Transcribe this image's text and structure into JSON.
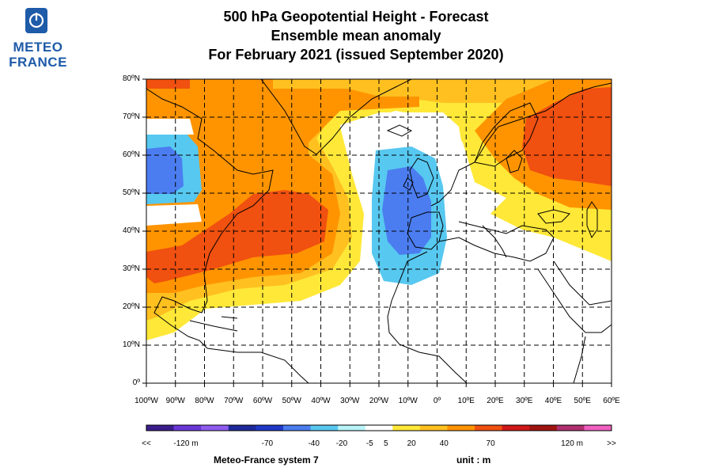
{
  "logo": {
    "line1": "METEO",
    "line2": "FRANCE",
    "icon": "meteo-france-badge-icon"
  },
  "title": {
    "line1": "500 hPa Geopotential Height   -   Forecast",
    "line2": "Ensemble mean anomaly",
    "line3": "For February 2021   (issued September 2020)"
  },
  "map": {
    "lat_labels": [
      "80ºN",
      "70ºN",
      "60ºN",
      "50ºN",
      "40ºN",
      "30ºN",
      "20ºN",
      "10ºN",
      "0º"
    ],
    "lat_values": [
      80,
      70,
      60,
      50,
      40,
      30,
      20,
      10,
      0
    ],
    "lon_labels": [
      "100ºW",
      "90ºW",
      "80ºW",
      "70ºW",
      "60ºW",
      "50ºW",
      "40ºW",
      "30ºW",
      "20ºW",
      "10ºW",
      "0º",
      "10ºE",
      "20ºE",
      "30ºE",
      "40ºE",
      "50ºE",
      "60ºE"
    ],
    "lon_values": [
      -100,
      -90,
      -80,
      -70,
      -60,
      -50,
      -40,
      -30,
      -20,
      -10,
      0,
      10,
      20,
      30,
      40,
      50,
      60
    ],
    "anomaly_regions": [
      {
        "level": "orange-20-40",
        "center": [
          -48,
          42
        ],
        "note": "positive anomaly western Atlantic"
      },
      {
        "level": "red-40-70",
        "center": [
          -65,
          36
        ],
        "note": "strong positive anomaly"
      },
      {
        "level": "red-40-70",
        "center": [
          45,
          62
        ],
        "note": "strong positive anomaly Scandinavia/Russia"
      },
      {
        "level": "blue-minus-40-minus-20",
        "center": [
          -12,
          44
        ],
        "note": "negative anomaly west of Iberia"
      },
      {
        "level": "blue-minus-40-minus-20",
        "center": [
          -97,
          55
        ],
        "note": "negative anomaly Canada"
      }
    ]
  },
  "colorbar": {
    "colors": [
      "#3b1e8c",
      "#6a38d8",
      "#8f5cf0",
      "#1e2a9a",
      "#2038c8",
      "#4b7df0",
      "#57c8f0",
      "#b8f4f8",
      "#ffffff",
      "#ffe838",
      "#ffc020",
      "#ff9400",
      "#f05010",
      "#d01818",
      "#a01410",
      "#b03070",
      "#f060c0"
    ],
    "labels": [
      {
        "text": "<<",
        "pos": 0.0
      },
      {
        "text": "-120 m",
        "pos": 0.085
      },
      {
        "text": "-70",
        "pos": 0.26
      },
      {
        "text": "-40",
        "pos": 0.36
      },
      {
        "text": "-20",
        "pos": 0.42
      },
      {
        "text": "-5",
        "pos": 0.48
      },
      {
        "text": "5",
        "pos": 0.515
      },
      {
        "text": "20",
        "pos": 0.57
      },
      {
        "text": "40",
        "pos": 0.64
      },
      {
        "text": "70",
        "pos": 0.74
      },
      {
        "text": "120 m",
        "pos": 0.915
      },
      {
        "text": ">>",
        "pos": 1.0
      }
    ]
  },
  "footer": {
    "system": "Meteo-France system 7",
    "unit": "unit :  m"
  },
  "colors": {
    "brand": "#1e5ba8"
  }
}
